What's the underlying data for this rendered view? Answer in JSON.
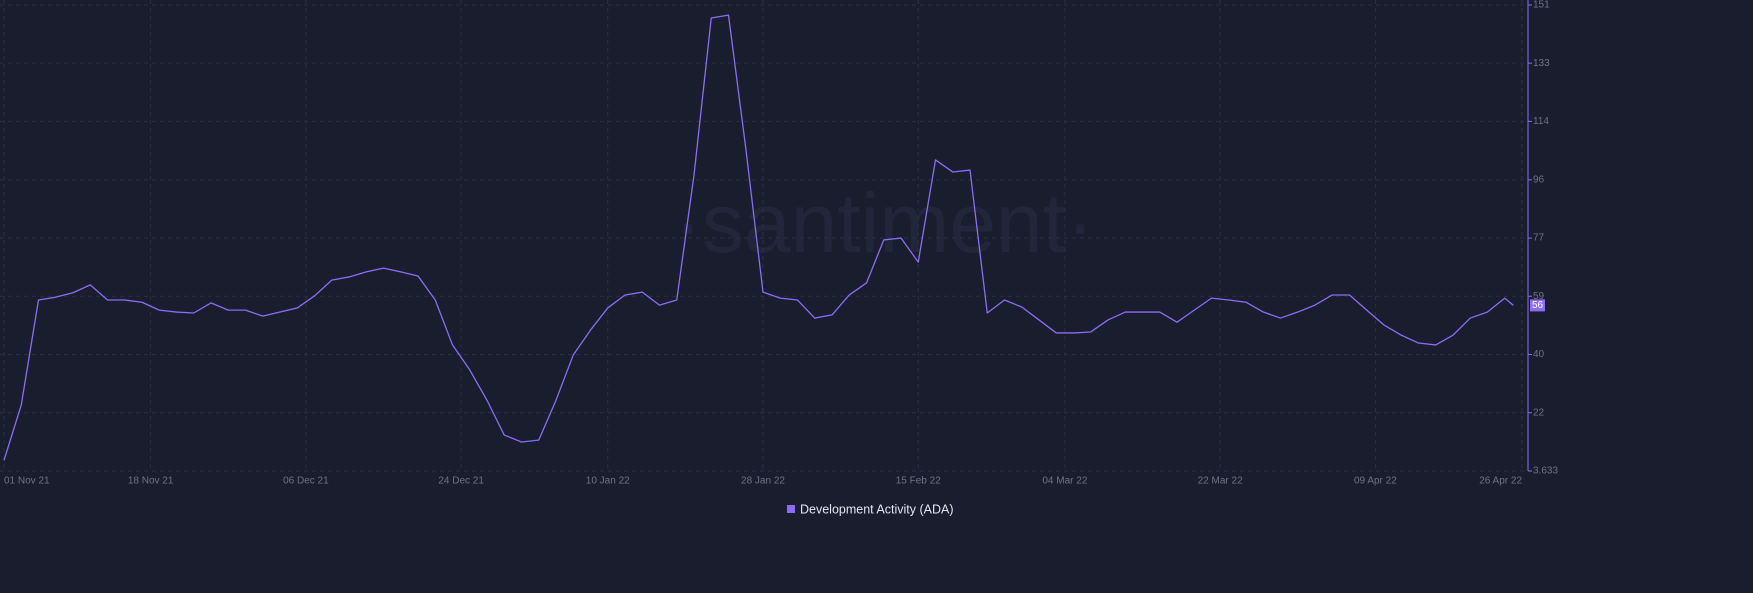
{
  "chart_data": {
    "type": "line",
    "watermark": "·santiment·",
    "x": [
      "2021-11-01",
      "2021-11-03",
      "2021-11-05",
      "2021-11-07",
      "2021-11-09",
      "2021-11-11",
      "2021-11-13",
      "2021-11-15",
      "2021-11-17",
      "2021-11-19",
      "2021-11-21",
      "2021-11-23",
      "2021-11-25",
      "2021-11-27",
      "2021-11-29",
      "2021-12-01",
      "2021-12-03",
      "2021-12-05",
      "2021-12-07",
      "2021-12-09",
      "2021-12-11",
      "2021-12-13",
      "2021-12-15",
      "2021-12-17",
      "2021-12-19",
      "2021-12-21",
      "2021-12-23",
      "2021-12-25",
      "2021-12-27",
      "2021-12-29",
      "2021-12-31",
      "2022-01-02",
      "2022-01-04",
      "2022-01-06",
      "2022-01-08",
      "2022-01-10",
      "2022-01-12",
      "2022-01-14",
      "2022-01-16",
      "2022-01-18",
      "2022-01-20",
      "2022-01-22",
      "2022-01-24",
      "2022-01-26",
      "2022-01-28",
      "2022-01-30",
      "2022-02-01",
      "2022-02-03",
      "2022-02-05",
      "2022-02-07",
      "2022-02-09",
      "2022-02-11",
      "2022-02-13",
      "2022-02-15",
      "2022-02-17",
      "2022-02-19",
      "2022-02-21",
      "2022-02-23",
      "2022-02-25",
      "2022-02-27",
      "2022-03-01",
      "2022-03-03",
      "2022-03-05",
      "2022-03-07",
      "2022-03-09",
      "2022-03-11",
      "2022-03-13",
      "2022-03-15",
      "2022-03-17",
      "2022-03-19",
      "2022-03-21",
      "2022-03-23",
      "2022-03-25",
      "2022-03-27",
      "2022-03-29",
      "2022-03-31",
      "2022-04-02",
      "2022-04-04",
      "2022-04-06",
      "2022-04-08",
      "2022-04-10",
      "2022-04-12",
      "2022-04-14",
      "2022-04-16",
      "2022-04-18",
      "2022-04-20",
      "2022-04-22",
      "2022-04-24",
      "2022-04-25"
    ],
    "series": [
      {
        "name": "Development Activity (ADA)",
        "color": "#8b6cf6",
        "values": [
          7,
          24.5,
          57.7,
          58.6,
          60,
          62.5,
          57.7,
          57.7,
          57,
          54.5,
          53.9,
          53.6,
          56.8,
          54.5,
          54.5,
          52.6,
          53.9,
          55.2,
          59,
          64,
          65,
          66.6,
          67.8,
          66.6,
          65.3,
          57.7,
          43.5,
          35.6,
          26,
          15,
          12.8,
          13.4,
          26,
          40.3,
          48.2,
          55.2,
          59.3,
          60.2,
          56.1,
          57.7,
          97.2,
          146.9,
          147.8,
          105.8,
          60.2,
          58.3,
          57.7,
          52,
          53,
          59.3,
          63.1,
          76.7,
          77.3,
          69.7,
          102,
          98.2,
          98.8,
          53.6,
          57.7,
          55.5,
          51.4,
          47.3,
          47.3,
          47.6,
          51.4,
          53.9,
          53.9,
          53.9,
          50.7,
          54.5,
          58.3,
          57.7,
          57,
          53.9,
          52,
          53.9,
          56.1,
          59.3,
          59.3,
          54.5,
          49.8,
          46.6,
          44.1,
          43.5,
          46.6,
          52,
          53.9,
          58.3,
          56
        ]
      }
    ],
    "xlim": [
      "2021-11-01",
      "2022-04-26"
    ],
    "xticks": [
      {
        "value": "2021-11-01",
        "label": "01 Nov 21"
      },
      {
        "value": "2021-11-18",
        "label": "18 Nov 21"
      },
      {
        "value": "2021-12-06",
        "label": "06 Dec 21"
      },
      {
        "value": "2021-12-24",
        "label": "24 Dec 21"
      },
      {
        "value": "2022-01-10",
        "label": "10 Jan 22"
      },
      {
        "value": "2022-01-28",
        "label": "28 Jan 22"
      },
      {
        "value": "2022-02-15",
        "label": "15 Feb 22"
      },
      {
        "value": "2022-03-04",
        "label": "04 Mar 22"
      },
      {
        "value": "2022-03-22",
        "label": "22 Mar 22"
      },
      {
        "value": "2022-04-09",
        "label": "09 Apr 22"
      },
      {
        "value": "2022-04-26",
        "label": "26 Apr 22"
      }
    ],
    "ylim": [
      3.633,
      151
    ],
    "yticks": [
      3.633,
      {
        "value": 22.05,
        "label": "22"
      },
      {
        "value": 40.47,
        "label": "40"
      },
      {
        "value": 58.9,
        "label": "59"
      },
      {
        "value": 77.3,
        "label": "77"
      },
      {
        "value": 95.7,
        "label": "96"
      },
      {
        "value": 114.2,
        "label": "114"
      },
      {
        "value": 132.6,
        "label": "133"
      },
      151
    ],
    "grid": true
  }
}
